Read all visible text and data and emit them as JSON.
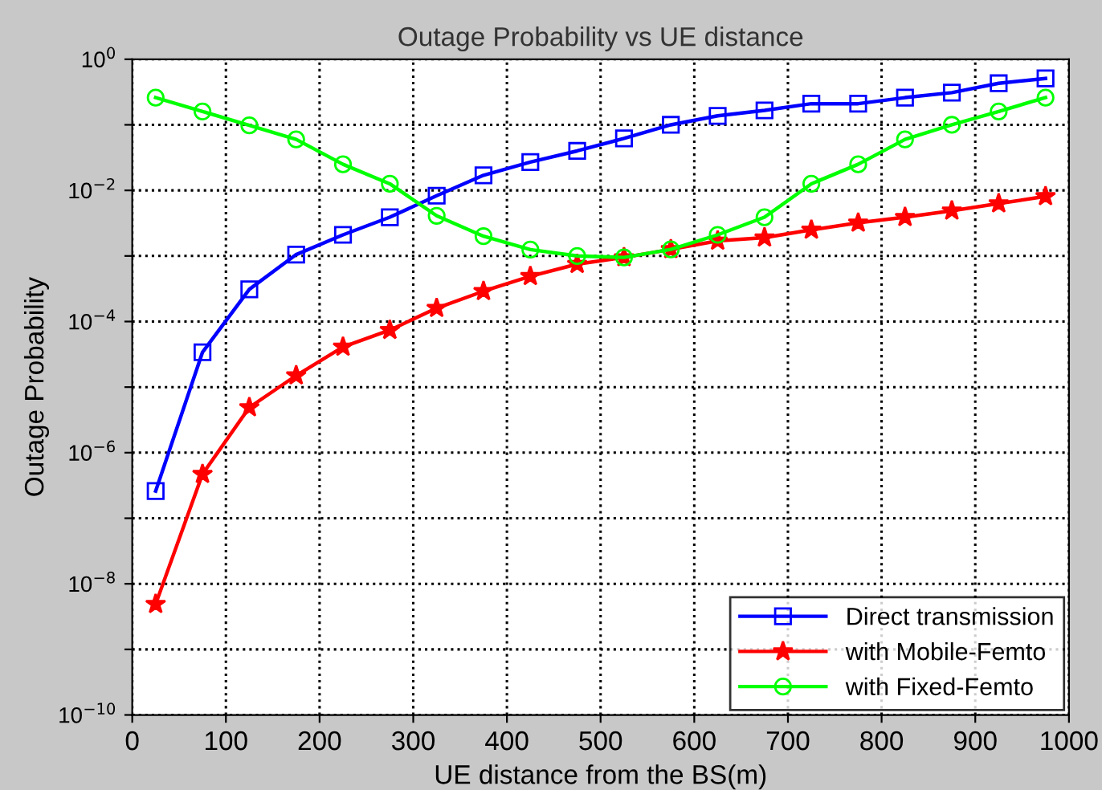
{
  "chart_data": {
    "type": "line",
    "title": "Outage Probability vs UE distance",
    "xlabel": "UE distance from the BS(m)",
    "ylabel": "Outage Probability",
    "x": [
      25,
      75,
      125,
      175,
      225,
      275,
      325,
      375,
      425,
      475,
      525,
      575,
      625,
      675,
      725,
      775,
      825,
      875,
      925,
      975
    ],
    "series": [
      {
        "name": "Direct transmission",
        "color": "#0000ff",
        "marker": "square",
        "values": [
          2.6e-07,
          3.4e-05,
          0.00031,
          0.00105,
          0.0021,
          0.0039,
          0.0083,
          0.017,
          0.027,
          0.04,
          0.062,
          0.1,
          0.137,
          0.166,
          0.21,
          0.21,
          0.26,
          0.31,
          0.43,
          0.51
        ]
      },
      {
        "name": "with Mobile-Femto",
        "color": "#ff0000",
        "marker": "star",
        "values": [
          4.9e-09,
          4.7e-07,
          4.9e-06,
          1.5e-05,
          4.1e-05,
          7.4e-05,
          0.00016,
          0.00029,
          0.00049,
          0.00075,
          0.00095,
          0.00126,
          0.0017,
          0.0019,
          0.0025,
          0.0032,
          0.0039,
          0.0049,
          0.0063,
          0.0081
        ]
      },
      {
        "name": "with Fixed-Femto",
        "color": "#00ff00",
        "marker": "circle",
        "values": [
          0.26,
          0.16,
          0.098,
          0.06,
          0.025,
          0.0126,
          0.0041,
          0.002,
          0.00125,
          0.001,
          0.00095,
          0.00126,
          0.0021,
          0.0039,
          0.0126,
          0.025,
          0.06,
          0.1,
          0.16,
          0.26
        ]
      }
    ],
    "log": "y",
    "xlim": [
      0,
      1000
    ],
    "xticks": [
      0,
      100,
      200,
      300,
      400,
      500,
      600,
      700,
      800,
      900,
      1000
    ],
    "ylim": [
      1e-10,
      1
    ],
    "yticks": [
      {
        "value": 1e-10,
        "label": "10$^{−10}$"
      },
      {
        "value": 1e-09,
        "label": null
      },
      {
        "value": 1e-08,
        "label": "10$^{−8}$"
      },
      {
        "value": 1e-07,
        "label": null
      },
      {
        "value": 1e-06,
        "label": "10$^{−6}$"
      },
      {
        "value": 1e-05,
        "label": null
      },
      {
        "value": 0.0001,
        "label": "10$^{−4}$"
      },
      {
        "value": 0.001,
        "label": null
      },
      {
        "value": 0.01,
        "label": "10$^{−2}$"
      },
      {
        "value": 0.1,
        "label": null
      },
      {
        "value": 1,
        "label": "10$^{0}$"
      }
    ],
    "grid": true,
    "legend": "bottom right",
    "line_style": "solid"
  }
}
